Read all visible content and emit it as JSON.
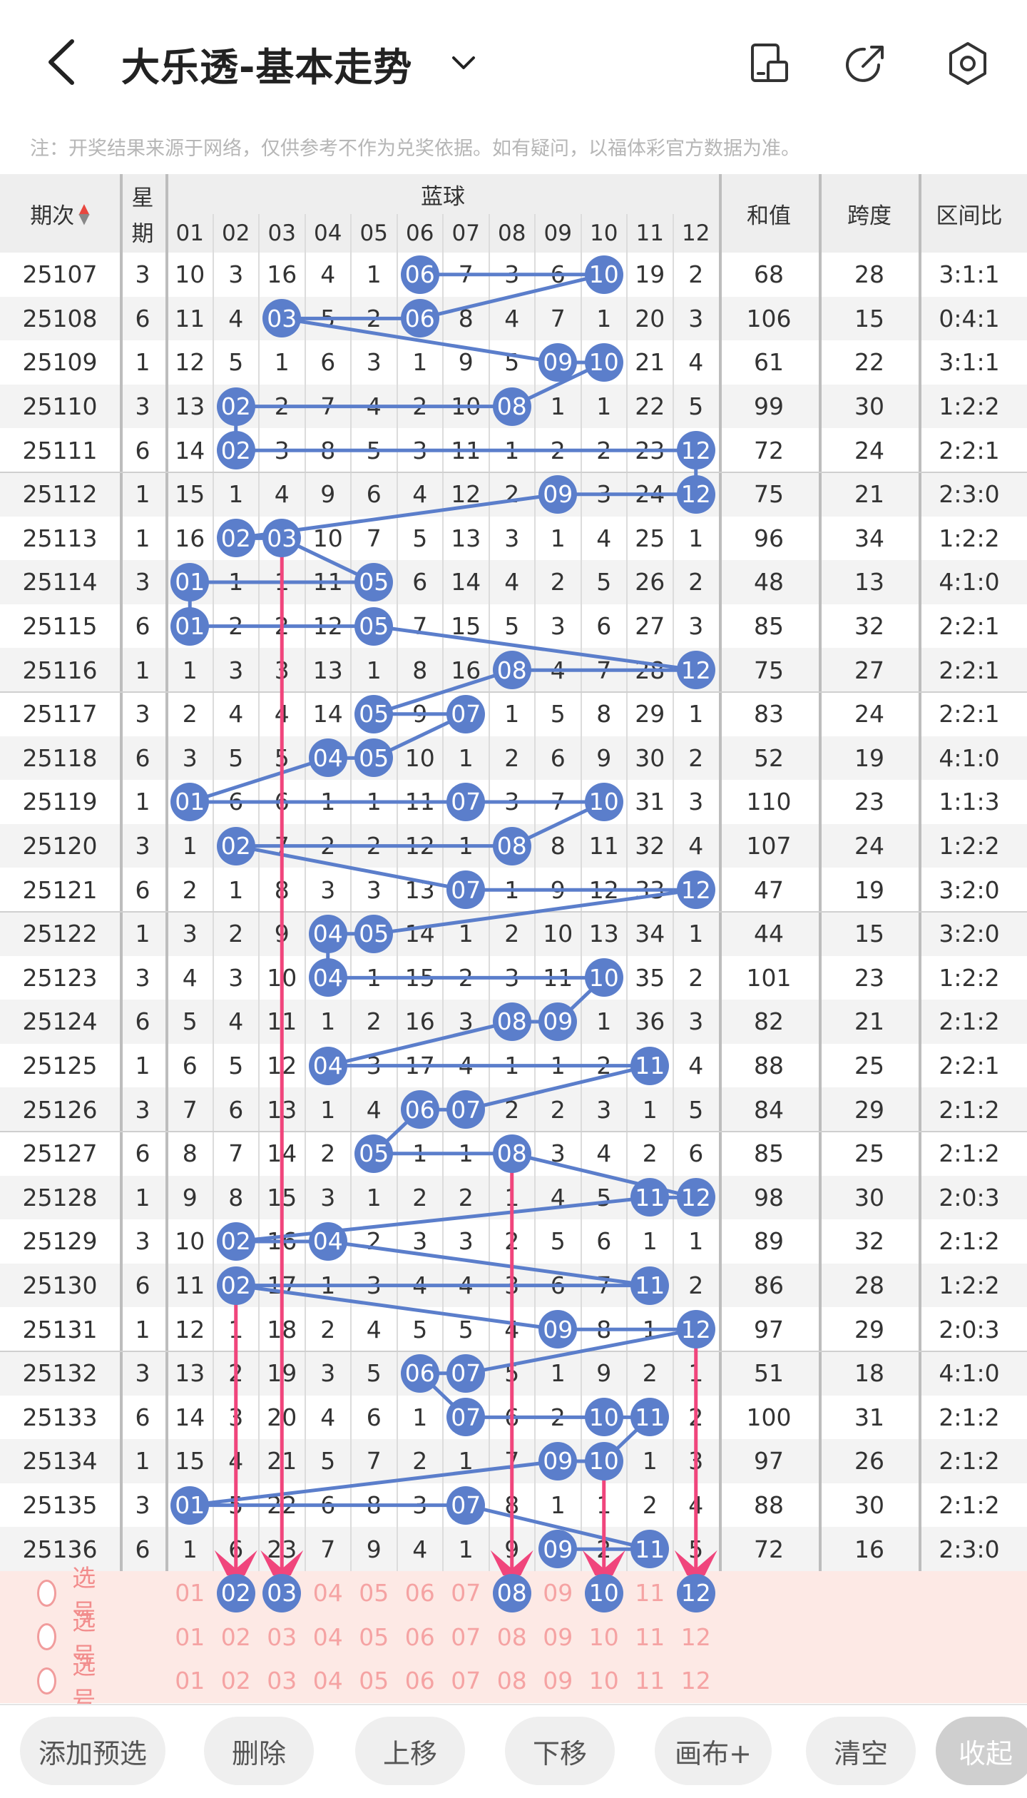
{
  "header": {
    "title": "大乐透-基本走势",
    "back_icon": "chevron-left-icon",
    "dropdown_icon": "chevron-down-icon",
    "icons": [
      "screen-icon",
      "share-icon",
      "gear-icon"
    ]
  },
  "notice": "注：开奖结果来源于网络，仅供参考不作为兑奖依据。如有疑问，以福体彩官方数据为准。",
  "table": {
    "col_period": "期次",
    "col_week_top": "星",
    "col_week_bottom": "期",
    "col_blue": "蓝球",
    "col_sum": "和值",
    "col_span": "跨度",
    "col_ratio": "区间比",
    "numbers": [
      "01",
      "02",
      "03",
      "04",
      "05",
      "06",
      "07",
      "08",
      "09",
      "10",
      "11",
      "12"
    ],
    "rows": [
      {
        "period": "25107",
        "week": "3",
        "cells": [
          "10",
          "3",
          "16",
          "4",
          "1",
          "06",
          "7",
          "3",
          "6",
          "10",
          "19",
          "2"
        ],
        "sum": "68",
        "span": "28",
        "ratio": "3:1:1"
      },
      {
        "period": "25108",
        "week": "6",
        "cells": [
          "11",
          "4",
          "03",
          "5",
          "2",
          "06",
          "8",
          "4",
          "7",
          "1",
          "20",
          "3"
        ],
        "sum": "106",
        "span": "15",
        "ratio": "0:4:1"
      },
      {
        "period": "25109",
        "week": "1",
        "cells": [
          "12",
          "5",
          "1",
          "6",
          "3",
          "1",
          "9",
          "5",
          "09",
          "10",
          "21",
          "4"
        ],
        "sum": "61",
        "span": "22",
        "ratio": "3:1:1"
      },
      {
        "period": "25110",
        "week": "3",
        "cells": [
          "13",
          "02",
          "2",
          "7",
          "4",
          "2",
          "10",
          "08",
          "1",
          "1",
          "22",
          "5"
        ],
        "sum": "99",
        "span": "30",
        "ratio": "1:2:2"
      },
      {
        "period": "25111",
        "week": "6",
        "cells": [
          "14",
          "02",
          "3",
          "8",
          "5",
          "3",
          "11",
          "1",
          "2",
          "2",
          "23",
          "12"
        ],
        "sum": "72",
        "span": "24",
        "ratio": "2:2:1"
      },
      {
        "period": "25112",
        "week": "1",
        "cells": [
          "15",
          "1",
          "4",
          "9",
          "6",
          "4",
          "12",
          "2",
          "09",
          "3",
          "24",
          "12"
        ],
        "sum": "75",
        "span": "21",
        "ratio": "2:3:0"
      },
      {
        "period": "25113",
        "week": "1",
        "cells": [
          "16",
          "02",
          "03",
          "10",
          "7",
          "5",
          "13",
          "3",
          "1",
          "4",
          "25",
          "1"
        ],
        "sum": "96",
        "span": "34",
        "ratio": "1:2:2"
      },
      {
        "period": "25114",
        "week": "3",
        "cells": [
          "01",
          "1",
          "1",
          "11",
          "05",
          "6",
          "14",
          "4",
          "2",
          "5",
          "26",
          "2"
        ],
        "sum": "48",
        "span": "13",
        "ratio": "4:1:0"
      },
      {
        "period": "25115",
        "week": "6",
        "cells": [
          "01",
          "2",
          "2",
          "12",
          "05",
          "7",
          "15",
          "5",
          "3",
          "6",
          "27",
          "3"
        ],
        "sum": "85",
        "span": "32",
        "ratio": "2:2:1"
      },
      {
        "period": "25116",
        "week": "1",
        "cells": [
          "1",
          "3",
          "3",
          "13",
          "1",
          "8",
          "16",
          "08",
          "4",
          "7",
          "28",
          "12"
        ],
        "sum": "75",
        "span": "27",
        "ratio": "2:2:1"
      },
      {
        "period": "25117",
        "week": "3",
        "cells": [
          "2",
          "4",
          "4",
          "14",
          "05",
          "9",
          "07",
          "1",
          "5",
          "8",
          "29",
          "1"
        ],
        "sum": "83",
        "span": "24",
        "ratio": "2:2:1"
      },
      {
        "period": "25118",
        "week": "6",
        "cells": [
          "3",
          "5",
          "5",
          "04",
          "05",
          "10",
          "1",
          "2",
          "6",
          "9",
          "30",
          "2"
        ],
        "sum": "52",
        "span": "19",
        "ratio": "4:1:0"
      },
      {
        "period": "25119",
        "week": "1",
        "cells": [
          "01",
          "6",
          "6",
          "1",
          "1",
          "11",
          "07",
          "3",
          "7",
          "10",
          "31",
          "3"
        ],
        "sum": "110",
        "span": "23",
        "ratio": "1:1:3"
      },
      {
        "period": "25120",
        "week": "3",
        "cells": [
          "1",
          "02",
          "7",
          "2",
          "2",
          "12",
          "1",
          "08",
          "8",
          "11",
          "32",
          "4"
        ],
        "sum": "107",
        "span": "24",
        "ratio": "1:2:2"
      },
      {
        "period": "25121",
        "week": "6",
        "cells": [
          "2",
          "1",
          "8",
          "3",
          "3",
          "13",
          "07",
          "1",
          "9",
          "12",
          "33",
          "12"
        ],
        "sum": "47",
        "span": "19",
        "ratio": "3:2:0"
      },
      {
        "period": "25122",
        "week": "1",
        "cells": [
          "3",
          "2",
          "9",
          "04",
          "05",
          "14",
          "1",
          "2",
          "10",
          "13",
          "34",
          "1"
        ],
        "sum": "44",
        "span": "15",
        "ratio": "3:2:0"
      },
      {
        "period": "25123",
        "week": "3",
        "cells": [
          "4",
          "3",
          "10",
          "04",
          "1",
          "15",
          "2",
          "3",
          "11",
          "10",
          "35",
          "2"
        ],
        "sum": "101",
        "span": "23",
        "ratio": "1:2:2"
      },
      {
        "period": "25124",
        "week": "6",
        "cells": [
          "5",
          "4",
          "11",
          "1",
          "2",
          "16",
          "3",
          "08",
          "09",
          "1",
          "36",
          "3"
        ],
        "sum": "82",
        "span": "21",
        "ratio": "2:1:2"
      },
      {
        "period": "25125",
        "week": "1",
        "cells": [
          "6",
          "5",
          "12",
          "04",
          "3",
          "17",
          "4",
          "1",
          "1",
          "2",
          "11",
          "4"
        ],
        "sum": "88",
        "span": "25",
        "ratio": "2:2:1"
      },
      {
        "period": "25126",
        "week": "3",
        "cells": [
          "7",
          "6",
          "13",
          "1",
          "4",
          "06",
          "07",
          "2",
          "2",
          "3",
          "1",
          "5"
        ],
        "sum": "84",
        "span": "29",
        "ratio": "2:1:2"
      },
      {
        "period": "25127",
        "week": "6",
        "cells": [
          "8",
          "7",
          "14",
          "2",
          "05",
          "1",
          "1",
          "08",
          "3",
          "4",
          "2",
          "6"
        ],
        "sum": "85",
        "span": "25",
        "ratio": "2:1:2"
      },
      {
        "period": "25128",
        "week": "1",
        "cells": [
          "9",
          "8",
          "15",
          "3",
          "1",
          "2",
          "2",
          "1",
          "4",
          "5",
          "11",
          "12"
        ],
        "sum": "98",
        "span": "30",
        "ratio": "2:0:3"
      },
      {
        "period": "25129",
        "week": "3",
        "cells": [
          "10",
          "02",
          "16",
          "04",
          "2",
          "3",
          "3",
          "2",
          "5",
          "6",
          "1",
          "1"
        ],
        "sum": "89",
        "span": "32",
        "ratio": "2:1:2"
      },
      {
        "period": "25130",
        "week": "6",
        "cells": [
          "11",
          "02",
          "17",
          "1",
          "3",
          "4",
          "4",
          "3",
          "6",
          "7",
          "11",
          "2"
        ],
        "sum": "86",
        "span": "28",
        "ratio": "1:2:2"
      },
      {
        "period": "25131",
        "week": "1",
        "cells": [
          "12",
          "1",
          "18",
          "2",
          "4",
          "5",
          "5",
          "4",
          "09",
          "8",
          "1",
          "12"
        ],
        "sum": "97",
        "span": "29",
        "ratio": "2:0:3"
      },
      {
        "period": "25132",
        "week": "3",
        "cells": [
          "13",
          "2",
          "19",
          "3",
          "5",
          "06",
          "07",
          "5",
          "1",
          "9",
          "2",
          "1"
        ],
        "sum": "51",
        "span": "18",
        "ratio": "4:1:0"
      },
      {
        "period": "25133",
        "week": "6",
        "cells": [
          "14",
          "3",
          "20",
          "4",
          "6",
          "1",
          "07",
          "6",
          "2",
          "10",
          "11",
          "2"
        ],
        "sum": "100",
        "span": "31",
        "ratio": "2:1:2"
      },
      {
        "period": "25134",
        "week": "1",
        "cells": [
          "15",
          "4",
          "21",
          "5",
          "7",
          "2",
          "1",
          "7",
          "09",
          "10",
          "1",
          "3"
        ],
        "sum": "97",
        "span": "26",
        "ratio": "2:1:2"
      },
      {
        "period": "25135",
        "week": "3",
        "cells": [
          "01",
          "5",
          "22",
          "6",
          "8",
          "3",
          "07",
          "8",
          "1",
          "1",
          "2",
          "4"
        ],
        "sum": "88",
        "span": "30",
        "ratio": "2:1:2"
      },
      {
        "period": "25136",
        "week": "6",
        "cells": [
          "1",
          "6",
          "23",
          "7",
          "9",
          "4",
          "1",
          "9",
          "09",
          "2",
          "11",
          "5"
        ],
        "sum": "72",
        "span": "16",
        "ratio": "2:3:0"
      }
    ]
  },
  "selection": {
    "label": "选号",
    "rows": [
      {
        "label": "选号",
        "picked": [
          "02",
          "03",
          "08",
          "10",
          "12"
        ]
      },
      {
        "label": "选号",
        "picked": []
      },
      {
        "label": "选号",
        "picked": []
      }
    ]
  },
  "bottom_bar": {
    "buttons": [
      "添加预选",
      "删除",
      "上移",
      "下移",
      "画布+",
      "清空",
      "收起"
    ]
  },
  "colors": {
    "ball": "#5b7ecb",
    "line": "#5b7ecb",
    "arrow": "#f0457c",
    "selection_bg": "#fde9e5"
  }
}
